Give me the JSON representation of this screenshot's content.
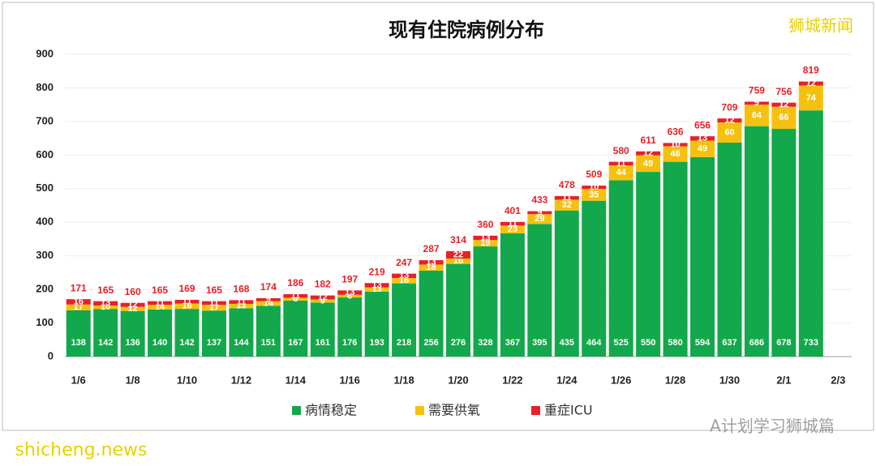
{
  "chart_data": {
    "type": "stacked_bar",
    "title": "现有住院病例分布",
    "categories": [
      "1/6",
      null,
      "1/8",
      null,
      "1/10",
      null,
      "1/12",
      null,
      "1/14",
      null,
      "1/16",
      null,
      "1/18",
      null,
      "1/20",
      null,
      "1/22",
      null,
      "1/24",
      null,
      "1/26",
      null,
      "1/28",
      null,
      "1/30",
      null,
      "2/1",
      null,
      "2/3"
    ],
    "series": [
      {
        "name": "病情稳定",
        "color": "#13a84b",
        "values": [
          138,
          142,
          136,
          140,
          142,
          137,
          144,
          151,
          167,
          161,
          176,
          193,
          218,
          256,
          276,
          328,
          367,
          395,
          435,
          464,
          525,
          550,
          580,
          594,
          637,
          686,
          678,
          733,
          null
        ]
      },
      {
        "name": "需要供氧",
        "color": "#f6c10e",
        "values": [
          17,
          10,
          12,
          14,
          16,
          17,
          13,
          14,
          8,
          9,
          8,
          13,
          16,
          18,
          16,
          19,
          23,
          29,
          32,
          35,
          44,
          49,
          46,
          49,
          60,
          64,
          66,
          74,
          null
        ]
      },
      {
        "name": "重症ICU",
        "color": "#e8202a",
        "values": [
          16,
          13,
          12,
          11,
          11,
          11,
          11,
          9,
          11,
          12,
          13,
          13,
          13,
          13,
          22,
          13,
          11,
          9,
          11,
          10,
          11,
          12,
          10,
          13,
          12,
          9,
          12,
          12,
          null
        ]
      }
    ],
    "totals": [
      171,
      165,
      160,
      165,
      169,
      165,
      168,
      174,
      186,
      182,
      197,
      219,
      247,
      287,
      314,
      360,
      401,
      433,
      478,
      509,
      580,
      611,
      636,
      656,
      709,
      759,
      756,
      819,
      null
    ],
    "ylim": [
      0,
      900
    ],
    "yticks": [
      0,
      100,
      200,
      300,
      400,
      500,
      600,
      700,
      800,
      900
    ],
    "grid": true,
    "watermarks": [
      "狮城新闻",
      "A计划学习狮城篇",
      "shicheng.news"
    ]
  }
}
